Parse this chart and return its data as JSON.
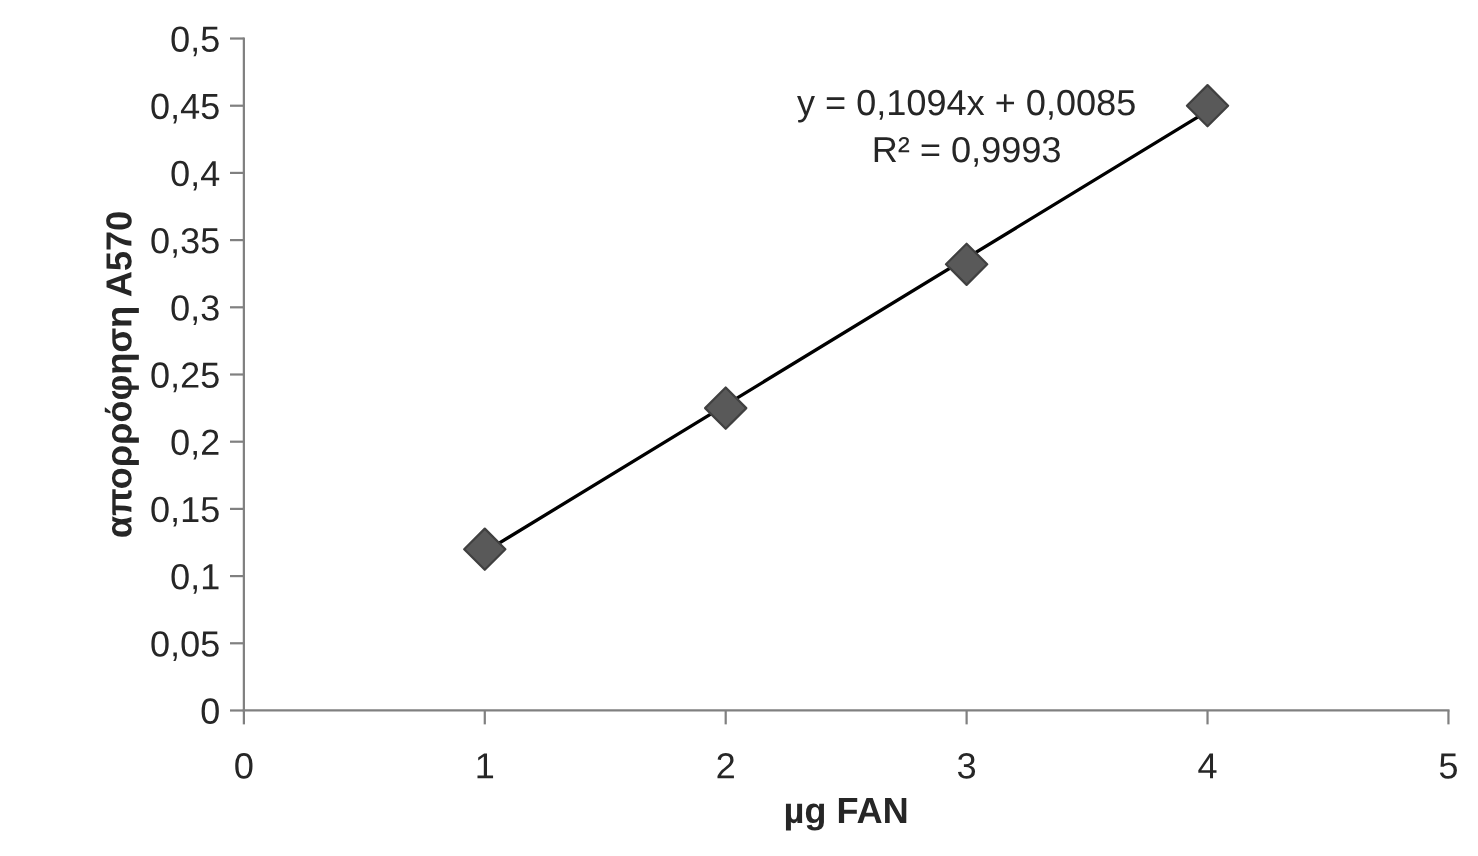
{
  "chart_data": {
    "type": "scatter",
    "xlabel": "µg FAN",
    "ylabel": "απορρόφηση A570",
    "series": [
      {
        "color": "#595959",
        "marker": "diamond",
        "x": [
          1,
          2,
          3,
          4
        ],
        "values": [
          0.12,
          0.225,
          0.332,
          0.45
        ]
      },
      {
        "type": "line",
        "color": "#000000",
        "marker": "none",
        "line_style": "solid",
        "x": [
          1,
          4
        ],
        "values": [
          0.118,
          0.446
        ]
      }
    ],
    "annotations": [
      "y = 0,1094x + 0,0085",
      "R² = 0,9993"
    ],
    "xlim": [
      0,
      5
    ],
    "xticks": [
      0,
      1,
      2,
      3,
      4,
      5
    ],
    "ylim": [
      0,
      0.5
    ],
    "yticks": [
      {
        "value": 0,
        "label": "0"
      },
      {
        "value": 0.05,
        "label": "0,05"
      },
      {
        "value": 0.1,
        "label": "0,1"
      },
      {
        "value": 0.15,
        "label": "0,15"
      },
      {
        "value": 0.2,
        "label": "0,2"
      },
      {
        "value": 0.25,
        "label": "0,25"
      },
      {
        "value": 0.3,
        "label": "0,3"
      },
      {
        "value": 0.35,
        "label": "0,35"
      },
      {
        "value": 0.4,
        "label": "0,4"
      },
      {
        "value": 0.45,
        "label": "0,45"
      },
      {
        "value": 0.5,
        "label": "0,5"
      }
    ],
    "grid": false,
    "legend": false
  }
}
